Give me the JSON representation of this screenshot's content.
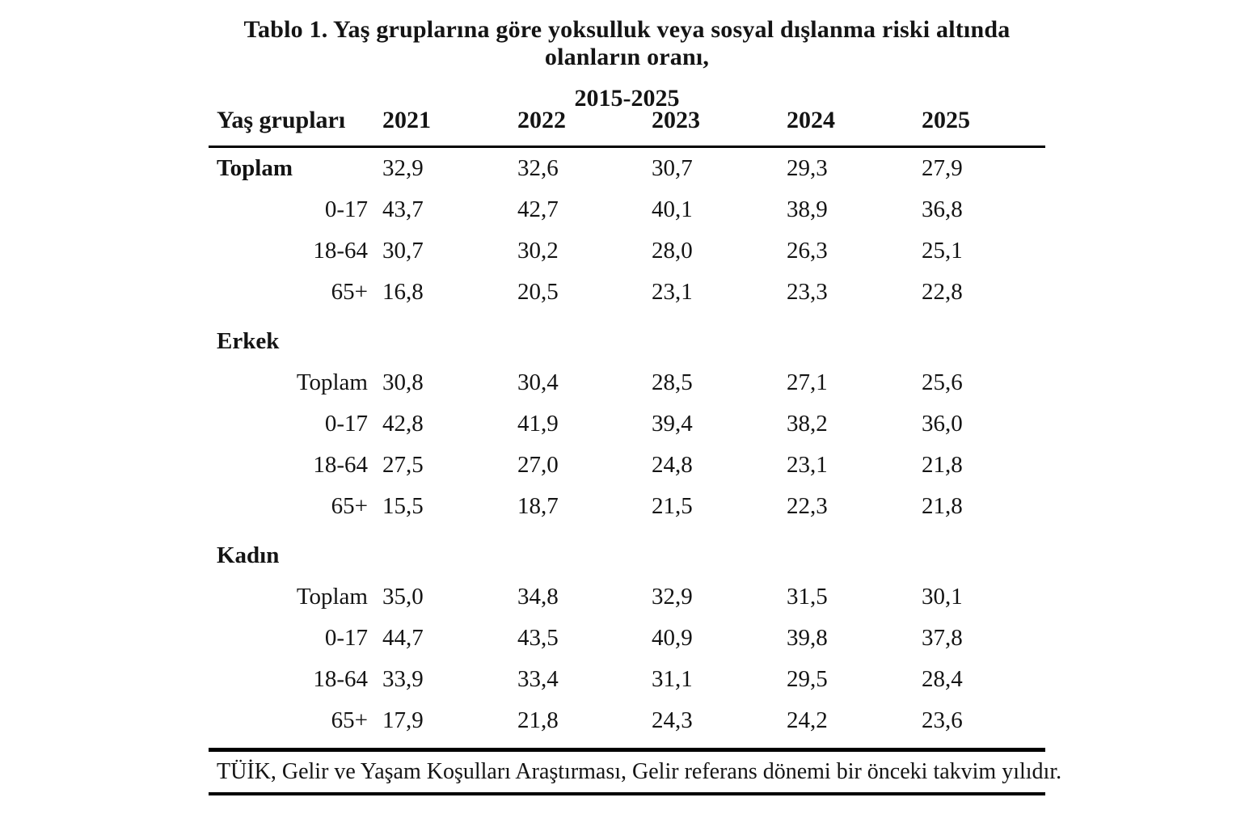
{
  "title": {
    "line1": "Tablo 1. Yaş gruplarına göre yoksulluk veya sosyal dışlanma riski altında olanların oranı,",
    "line2": "2015-2025"
  },
  "table": {
    "header": {
      "label": "Yaş grupları",
      "years": [
        "2021",
        "2022",
        "2023",
        "2024",
        "2025"
      ]
    },
    "groups": [
      {
        "heading": null,
        "rows": [
          {
            "label": "Toplam",
            "emphasis": true,
            "values": [
              "32,9",
              "32,6",
              "30,7",
              "29,3",
              "27,9"
            ]
          },
          {
            "label": "0-17",
            "values": [
              "43,7",
              "42,7",
              "40,1",
              "38,9",
              "36,8"
            ]
          },
          {
            "label": "18-64",
            "values": [
              "30,7",
              "30,2",
              "28,0",
              "26,3",
              "25,1"
            ]
          },
          {
            "label": "65+",
            "values": [
              "16,8",
              "20,5",
              "23,1",
              "23,3",
              "22,8"
            ]
          }
        ]
      },
      {
        "heading": "Erkek",
        "rows": [
          {
            "label": "Toplam",
            "values": [
              "30,8",
              "30,4",
              "28,5",
              "27,1",
              "25,6"
            ]
          },
          {
            "label": "0-17",
            "values": [
              "42,8",
              "41,9",
              "39,4",
              "38,2",
              "36,0"
            ]
          },
          {
            "label": "18-64",
            "values": [
              "27,5",
              "27,0",
              "24,8",
              "23,1",
              "21,8"
            ]
          },
          {
            "label": "65+",
            "values": [
              "15,5",
              "18,7",
              "21,5",
              "22,3",
              "21,8"
            ]
          }
        ]
      },
      {
        "heading": "Kadın",
        "rows": [
          {
            "label": "Toplam",
            "values": [
              "35,0",
              "34,8",
              "32,9",
              "31,5",
              "30,1"
            ]
          },
          {
            "label": "0-17",
            "values": [
              "44,7",
              "43,5",
              "40,9",
              "39,8",
              "37,8"
            ]
          },
          {
            "label": "18-64",
            "values": [
              "33,9",
              "33,4",
              "31,1",
              "29,5",
              "28,4"
            ]
          },
          {
            "label": "65+",
            "values": [
              "17,9",
              "21,8",
              "24,3",
              "24,2",
              "23,6"
            ]
          }
        ]
      }
    ]
  },
  "footer": {
    "note": "TÜİK, Gelir ve Yaşam Koşulları Araştırması, Gelir referans dönemi bir önceki takvim yılıdır."
  }
}
